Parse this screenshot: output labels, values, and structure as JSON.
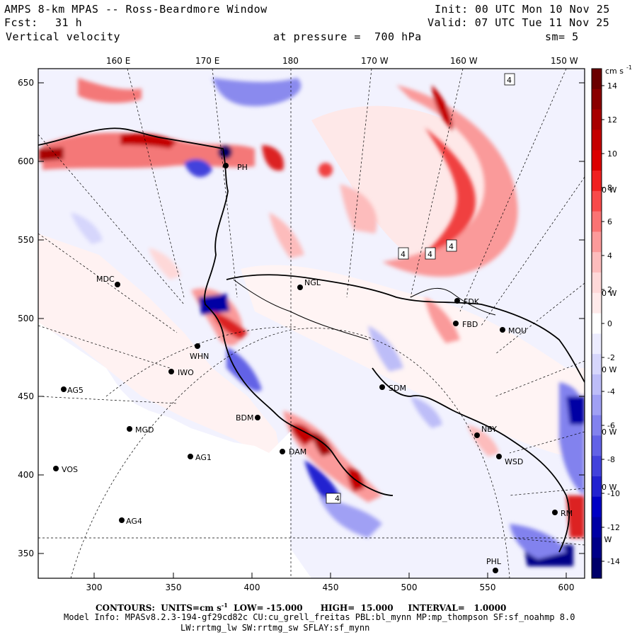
{
  "header": {
    "title": "AMPS 8-km MPAS -- Ross-Beardmore Window",
    "fcst_label": "Fcst:",
    "fcst_value": "31 h",
    "field": "Vertical velocity",
    "init": "Init: 00 UTC Mon 10 Nov 25",
    "valid": "Valid: 07 UTC Tue 11 Nov 25",
    "level": "at pressure =  700 hPa",
    "smooth": "sm= 5"
  },
  "top_axis": [
    "160 E",
    "170 E",
    "180",
    "170 W",
    "160 W",
    "150 W"
  ],
  "left_axis": [
    "650",
    "600",
    "550",
    "500",
    "450",
    "400",
    "350"
  ],
  "bottom_axis": [
    "300",
    "350",
    "400",
    "450",
    "500",
    "550",
    "600"
  ],
  "colorbar": {
    "unit": "cm s",
    "unit_exp": "-1",
    "ticks": [
      "14",
      "12",
      "10",
      "8",
      "6",
      "4",
      "2",
      "0",
      "-2",
      "-4",
      "-6",
      "-8",
      "-10",
      "-12",
      "-14"
    ],
    "colors": [
      "#6b0000",
      "#8a0000",
      "#a80000",
      "#c40000",
      "#dc0000",
      "#f02020",
      "#f84a4a",
      "#fa7373",
      "#fc9a9a",
      "#fdbcbc",
      "#fed8d8",
      "#ffeaea",
      "#ffffff",
      "#ececff",
      "#d6d6fc",
      "#bdbdf8",
      "#a0a0f4",
      "#8282ee",
      "#6262e6",
      "#4242dc",
      "#2222d0",
      "#0000c4",
      "#0000a4",
      "#000088",
      "#00006a"
    ]
  },
  "meridian_labels": [
    "140 W",
    "130 W",
    "120 W",
    "110 W",
    "100 W",
    "90 W",
    "80 W"
  ],
  "contour_box_labels": [
    "4",
    "4",
    "4",
    "4",
    "4"
  ],
  "stations": [
    {
      "id": "PH"
    },
    {
      "id": "MDC"
    },
    {
      "id": "NGL"
    },
    {
      "id": "FDK"
    },
    {
      "id": "FBD"
    },
    {
      "id": "MOU"
    },
    {
      "id": "WHN"
    },
    {
      "id": "IWO"
    },
    {
      "id": "AG5"
    },
    {
      "id": "SDM"
    },
    {
      "id": "MGD"
    },
    {
      "id": "BDM"
    },
    {
      "id": "NBY"
    },
    {
      "id": "AG1"
    },
    {
      "id": "DAM"
    },
    {
      "id": "VOS"
    },
    {
      "id": "WSD"
    },
    {
      "id": "AG4"
    },
    {
      "id": "RM"
    },
    {
      "id": "PHL"
    }
  ],
  "footer": {
    "contours": "CONTOURS:  UNITS=cm s",
    "contours_exp": "-1",
    "contours_rest": "  LOW= -15.000      HIGH=  15.000     INTERVAL=   1.0000",
    "model": "Model Info: MPASv8.2.3-194-gf29cd82c CU:cu_grell_freitas PBL:bl_mynn MP:mp_thompson SF:sf_noahmp 8.0",
    "physics": "LW:rrtmg_lw SW:rrtmg_sw SFLAY:sf_mynn"
  }
}
